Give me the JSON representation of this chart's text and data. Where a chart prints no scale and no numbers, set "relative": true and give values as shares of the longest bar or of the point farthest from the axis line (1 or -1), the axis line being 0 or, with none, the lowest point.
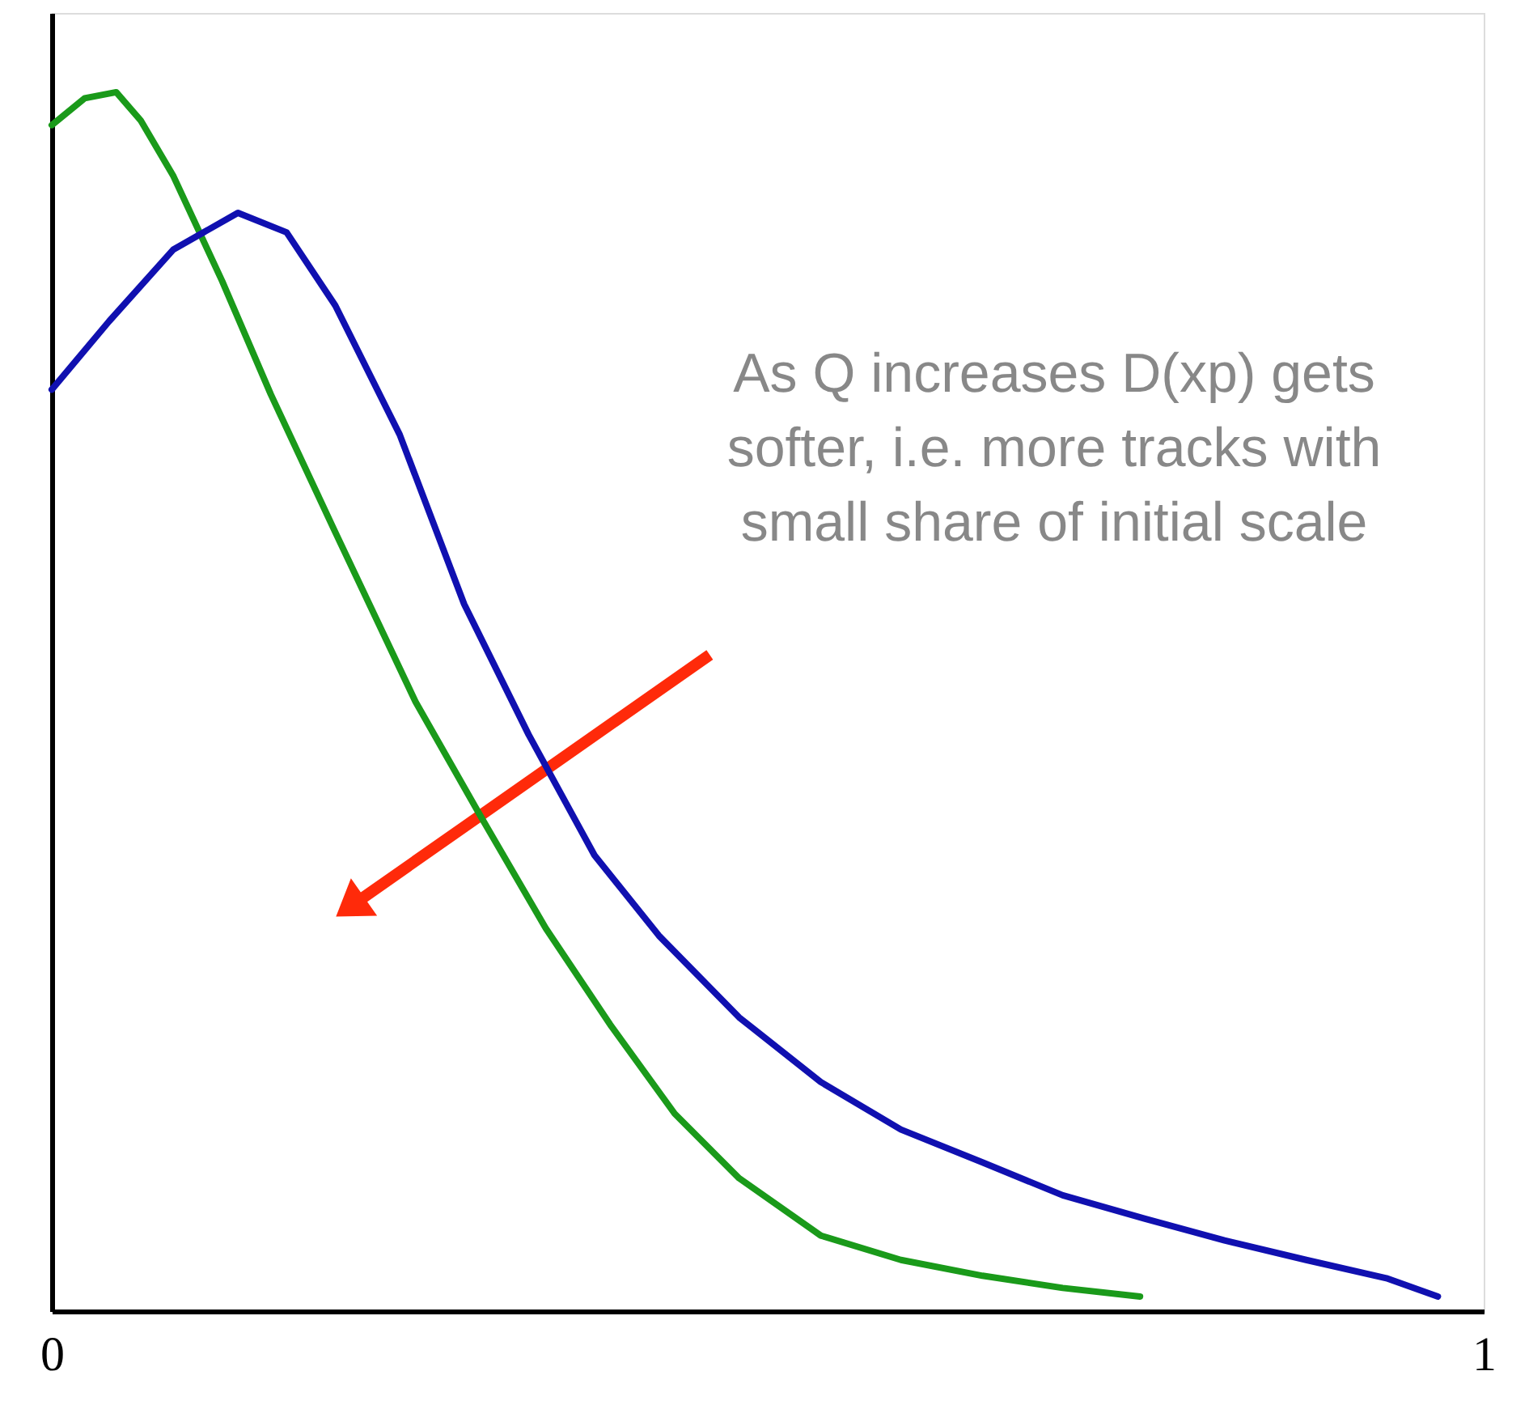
{
  "chart_data": {
    "type": "line",
    "relative": true,
    "xlim": [
      0,
      1
    ],
    "xticks": [
      0,
      1
    ],
    "grid": false,
    "marker": "none",
    "line_style": "solid",
    "series": [
      {
        "color": "#1a9a1a",
        "x": [
          0,
          0.023,
          0.045,
          0.062,
          0.085,
          0.119,
          0.153,
          0.198,
          0.254,
          0.299,
          0.345,
          0.39,
          0.435,
          0.48,
          0.537,
          0.593,
          0.65,
          0.706,
          0.76
        ],
        "values": [
          0.973,
          0.995,
          1.0,
          0.977,
          0.931,
          0.845,
          0.752,
          0.639,
          0.5,
          0.407,
          0.314,
          0.235,
          0.162,
          0.109,
          0.062,
          0.042,
          0.029,
          0.019,
          0.012
        ]
      },
      {
        "color": "#1010b0",
        "x": [
          0,
          0.04,
          0.085,
          0.13,
          0.164,
          0.198,
          0.243,
          0.288,
          0.333,
          0.379,
          0.424,
          0.48,
          0.537,
          0.593,
          0.65,
          0.706,
          0.763,
          0.819,
          0.876,
          0.932,
          0.968
        ],
        "values": [
          0.756,
          0.812,
          0.871,
          0.901,
          0.885,
          0.825,
          0.719,
          0.58,
          0.473,
          0.374,
          0.308,
          0.241,
          0.188,
          0.149,
          0.122,
          0.095,
          0.076,
          0.058,
          0.042,
          0.027,
          0.012
        ]
      }
    ],
    "annotations": [
      "As Q increases D(xp) gets\nsofter, i.e. more tracks with\nsmall share of initial scale"
    ]
  }
}
